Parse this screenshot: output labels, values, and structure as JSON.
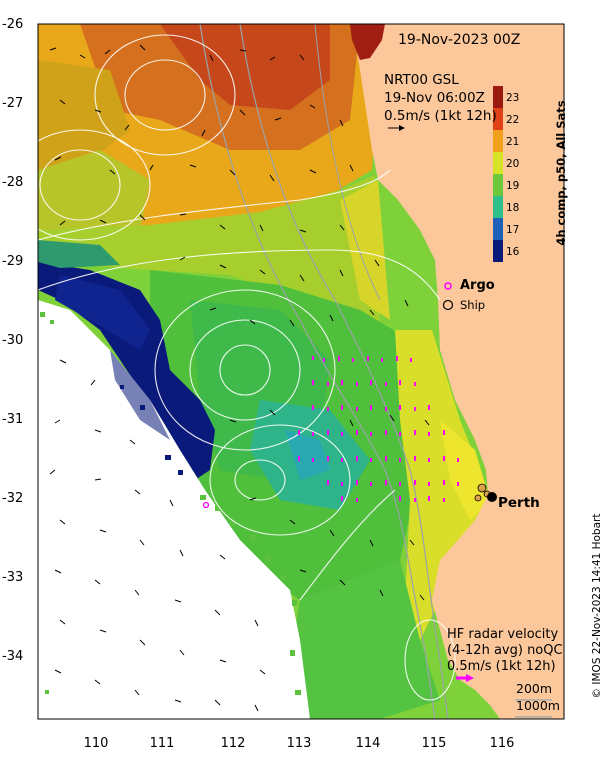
{
  "map": {
    "title": "19-Nov-2023 00Z",
    "altimetry_label_1": "NRT00 GSL",
    "altimetry_label_2": "19-Nov 06:00Z",
    "altimetry_label_3": "0.5m/s (1kt 12h)",
    "colorbar_title": "4h comp, p50, All Sats",
    "colorbar_ticks": [
      "23",
      "22",
      "21",
      "20",
      "19",
      "18",
      "17",
      "16"
    ],
    "legend_argo": "Argo",
    "legend_ship": "Ship",
    "city_label": "Perth",
    "hf_label_1": "HF radar velocity",
    "hf_label_2": "(4-12h avg) noQC",
    "hf_label_3": "0.5m/s (1kt 12h)",
    "depth_200": "200m",
    "depth_1000": "1000m",
    "credit": "© IMOS 22-Nov-2023 14:41 Hobart",
    "lat_ticks": [
      "-26",
      "-27",
      "-28",
      "-29",
      "-30",
      "-31",
      "-32",
      "-33",
      "-34"
    ],
    "lon_ticks": [
      "110",
      "111",
      "112",
      "113",
      "114",
      "115",
      "116"
    ],
    "colors": {
      "land": "#fcc89b",
      "sst_warm": "#c6471a",
      "sst_orange": "#e88a1a",
      "sst_yellow": "#e8d21e",
      "sst_green": "#5cc13c",
      "sst_teal": "#31b98a",
      "sst_cold": "#0a1a7a",
      "argo": "#ff00ff",
      "hf_arrow": "#ff00ff"
    }
  }
}
